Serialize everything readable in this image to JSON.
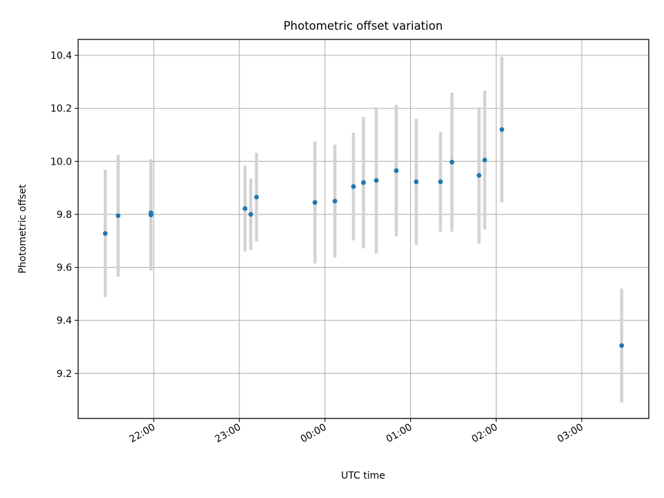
{
  "chart_data": {
    "type": "scatter",
    "title": "Photometric offset variation",
    "xlabel": "UTC time",
    "ylabel": "Photometric offset",
    "x_unit": "UTC time (HH:MM)",
    "xlim": [
      "21:07",
      "03:47"
    ],
    "ylim": [
      9.03,
      10.46
    ],
    "x_ticks": [
      "22:00",
      "23:00",
      "00:00",
      "01:00",
      "02:00",
      "03:00"
    ],
    "y_ticks": [
      9.2,
      9.4,
      9.6,
      9.8,
      10.0,
      10.2,
      10.4
    ],
    "grid": true,
    "point_color": "#1f77b4",
    "errorbar_color": "#d3d3d3",
    "series": [
      {
        "points": [
          {
            "x": "21:26",
            "y": 9.728,
            "lo": 9.488,
            "hi": 9.968
          },
          {
            "x": "21:35",
            "y": 9.795,
            "lo": 9.565,
            "hi": 10.025
          },
          {
            "x": "21:58",
            "y": 9.798,
            "lo": 9.588,
            "hi": 10.008
          },
          {
            "x": "21:58",
            "y": 9.806,
            "lo": 9.596,
            "hi": 10.006
          },
          {
            "x": "23:04",
            "y": 9.822,
            "lo": 9.66,
            "hi": 9.984
          },
          {
            "x": "23:08",
            "y": 9.8,
            "lo": 9.665,
            "hi": 9.935
          },
          {
            "x": "23:12",
            "y": 9.865,
            "lo": 9.698,
            "hi": 10.032
          },
          {
            "x": "23:53",
            "y": 9.845,
            "lo": 9.615,
            "hi": 10.075
          },
          {
            "x": "00:07",
            "y": 9.85,
            "lo": 9.637,
            "hi": 10.063
          },
          {
            "x": "00:20",
            "y": 9.905,
            "lo": 9.702,
            "hi": 10.108
          },
          {
            "x": "00:27",
            "y": 9.92,
            "lo": 9.672,
            "hi": 10.168
          },
          {
            "x": "00:36",
            "y": 9.928,
            "lo": 9.652,
            "hi": 10.204
          },
          {
            "x": "00:50",
            "y": 9.965,
            "lo": 9.717,
            "hi": 10.213
          },
          {
            "x": "01:04",
            "y": 9.923,
            "lo": 9.685,
            "hi": 10.161
          },
          {
            "x": "01:21",
            "y": 9.923,
            "lo": 9.735,
            "hi": 10.111
          },
          {
            "x": "01:29",
            "y": 9.997,
            "lo": 9.735,
            "hi": 10.259
          },
          {
            "x": "01:48",
            "y": 9.947,
            "lo": 9.69,
            "hi": 10.204
          },
          {
            "x": "01:52",
            "y": 10.005,
            "lo": 9.743,
            "hi": 10.267
          },
          {
            "x": "02:04",
            "y": 10.12,
            "lo": 9.845,
            "hi": 10.395
          },
          {
            "x": "03:28",
            "y": 9.305,
            "lo": 9.09,
            "hi": 9.52
          }
        ]
      }
    ]
  }
}
